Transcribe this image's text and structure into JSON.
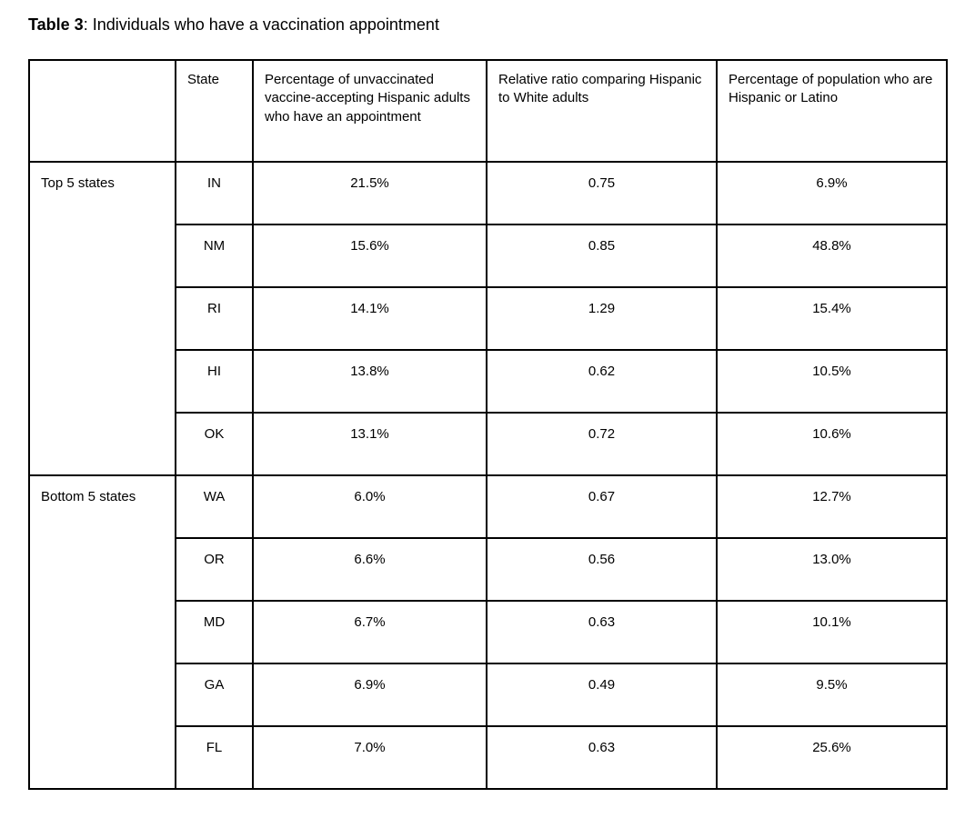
{
  "title": {
    "label": "Table 3",
    "text": ": Individuals who have a vaccination appointment"
  },
  "table": {
    "columns": [
      "",
      "State",
      "Percentage of unvaccinated vaccine-accepting Hispanic adults who have an appointment",
      "Relative ratio comparing Hispanic to White adults",
      "Percentage of population who are Hispanic or Latino"
    ],
    "groups": [
      {
        "label": "Top 5 states",
        "rows": [
          [
            "IN",
            "21.5%",
            "0.75",
            "6.9%"
          ],
          [
            "NM",
            "15.6%",
            "0.85",
            "48.8%"
          ],
          [
            "RI",
            "14.1%",
            "1.29",
            "15.4%"
          ],
          [
            "HI",
            "13.8%",
            "0.62",
            "10.5%"
          ],
          [
            "OK",
            "13.1%",
            "0.72",
            "10.6%"
          ]
        ]
      },
      {
        "label": "Bottom 5 states",
        "rows": [
          [
            "WA",
            "6.0%",
            "0.67",
            "12.7%"
          ],
          [
            "OR",
            "6.6%",
            "0.56",
            "13.0%"
          ],
          [
            "MD",
            "6.7%",
            "0.63",
            "10.1%"
          ],
          [
            "GA",
            "6.9%",
            "0.49",
            "9.5%"
          ],
          [
            "FL",
            "7.0%",
            "0.63",
            "25.6%"
          ]
        ]
      }
    ]
  },
  "chart_data": {
    "type": "table",
    "title": "Table 3: Individuals who have a vaccination appointment",
    "columns": [
      "Group",
      "State",
      "Percentage of unvaccinated vaccine-accepting Hispanic adults who have an appointment",
      "Relative ratio comparing Hispanic to White adults",
      "Percentage of population who are Hispanic or Latino"
    ],
    "rows": [
      [
        "Top 5 states",
        "IN",
        21.5,
        0.75,
        6.9
      ],
      [
        "Top 5 states",
        "NM",
        15.6,
        0.85,
        48.8
      ],
      [
        "Top 5 states",
        "RI",
        14.1,
        1.29,
        15.4
      ],
      [
        "Top 5 states",
        "HI",
        13.8,
        0.62,
        10.5
      ],
      [
        "Top 5 states",
        "OK",
        13.1,
        0.72,
        10.6
      ],
      [
        "Bottom 5 states",
        "WA",
        6.0,
        0.67,
        12.7
      ],
      [
        "Bottom 5 states",
        "OR",
        6.6,
        0.56,
        13.0
      ],
      [
        "Bottom 5 states",
        "MD",
        6.7,
        0.63,
        10.1
      ],
      [
        "Bottom 5 states",
        "GA",
        6.9,
        0.49,
        9.5
      ],
      [
        "Bottom 5 states",
        "FL",
        7.0,
        0.63,
        25.6
      ]
    ],
    "colors": {
      "text": "#000000",
      "border": "#000000",
      "background": "#ffffff"
    }
  }
}
